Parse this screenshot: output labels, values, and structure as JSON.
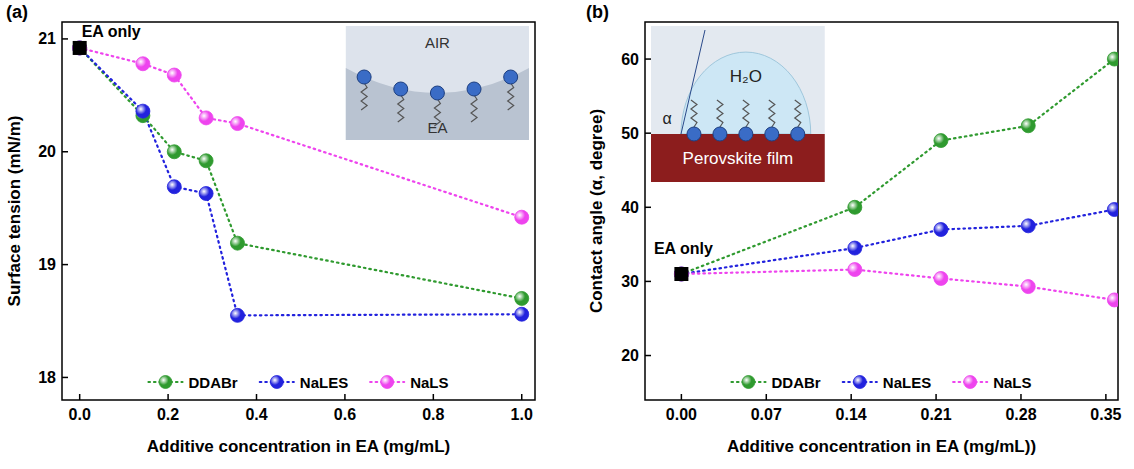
{
  "chart_data": [
    {
      "type": "line",
      "title": "(a)",
      "x_label": "Additive concentration in EA (mg/mL)",
      "y_label": "Surface tension (mN/m)",
      "xlim": [
        -0.04,
        1.03
      ],
      "ylim": [
        17.8,
        21.15
      ],
      "xticks": [
        {
          "value": 0,
          "label": "0.0"
        },
        0.2,
        0.4,
        0.6,
        0.8,
        {
          "value": 1,
          "label": "1.0"
        }
      ],
      "yticks": [
        18,
        19,
        20,
        21
      ],
      "grid": false,
      "legend": "bottom",
      "series": [
        {
          "name": "DDABr",
          "color": "#2f9a2f",
          "marker": "circle",
          "line_style": "dotted",
          "x": [
            0,
            0.143,
            0.214,
            0.286,
            0.357,
            1.0
          ],
          "values": [
            20.92,
            20.32,
            20.0,
            19.92,
            19.19,
            18.7
          ]
        },
        {
          "name": "NaLES",
          "color": "#2222dd",
          "marker": "circle",
          "line_style": "dotted",
          "x": [
            0,
            0.143,
            0.214,
            0.286,
            0.357,
            1.0
          ],
          "values": [
            20.92,
            20.36,
            19.69,
            19.63,
            18.55,
            18.56
          ]
        },
        {
          "name": "NaLS",
          "color": "#ee44ee",
          "marker": "circle",
          "line_style": "dotted",
          "x": [
            0,
            0.143,
            0.214,
            0.286,
            0.357,
            1.0
          ],
          "values": [
            20.92,
            20.78,
            20.68,
            20.3,
            20.25,
            19.42
          ]
        }
      ],
      "annotations": [
        {
          "text": "EA only",
          "x": 0,
          "y": 20.92,
          "marker": "square",
          "color": "#000000"
        },
        {
          "text": "AIR"
        },
        {
          "text": "EA"
        }
      ]
    },
    {
      "type": "line",
      "title": "(b)",
      "x_label": "Additive concentration in EA (mg/mL))",
      "y_label": "Contact angle (α, degree)",
      "xlim": [
        -0.03,
        0.36
      ],
      "ylim": [
        14,
        65
      ],
      "xticks": [
        {
          "value": 0,
          "label": "0.00"
        },
        0.07,
        0.14,
        0.21,
        0.28,
        0.35
      ],
      "yticks": [
        20,
        30,
        40,
        50,
        60
      ],
      "grid": false,
      "legend": "bottom",
      "series": [
        {
          "name": "DDABr",
          "color": "#2f9a2f",
          "marker": "circle",
          "line_style": "dotted",
          "x": [
            0,
            0.143,
            0.214,
            0.286,
            0.357
          ],
          "values": [
            31,
            40,
            49,
            51,
            60
          ]
        },
        {
          "name": "NaLES",
          "color": "#2222dd",
          "marker": "circle",
          "line_style": "dotted",
          "x": [
            0,
            0.143,
            0.214,
            0.286,
            0.357
          ],
          "values": [
            31,
            34.5,
            37,
            37.5,
            39.7
          ]
        },
        {
          "name": "NaLS",
          "color": "#ee44ee",
          "marker": "circle",
          "line_style": "dotted",
          "x": [
            0,
            0.143,
            0.214,
            0.286,
            0.357
          ],
          "values": [
            31,
            31.6,
            30.4,
            29.3,
            27.5
          ]
        }
      ],
      "annotations": [
        {
          "text": "EA only",
          "x": 0,
          "y": 31,
          "marker": "square",
          "color": "#000000"
        },
        {
          "text": "H₂O"
        },
        {
          "text": "α"
        },
        {
          "text": "Perovskite film"
        }
      ]
    }
  ]
}
